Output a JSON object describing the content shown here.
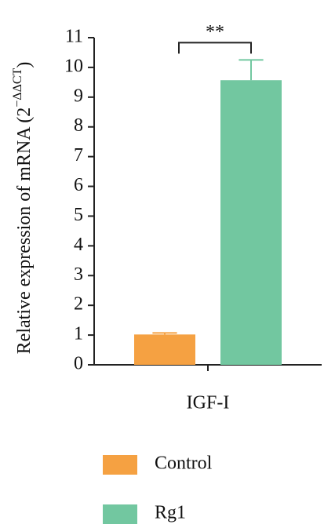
{
  "chart_data": {
    "type": "bar",
    "y_label": {
      "text": "Relative expression of mRNA (2",
      "superscript": "−ΔΔCT",
      "close": ")"
    },
    "categories": [
      "IGF-I"
    ],
    "series": [
      {
        "name": "Control",
        "color": "#f5a142",
        "values": [
          1.02
        ],
        "errors": [
          0.05
        ]
      },
      {
        "name": "Rg1",
        "color": "#72c7a0",
        "values": [
          9.57
        ],
        "errors": [
          0.68
        ]
      }
    ],
    "annotations": [
      {
        "text": "**"
      }
    ],
    "ylim": [
      0,
      11
    ],
    "yticks": [
      0,
      1,
      2,
      3,
      4,
      5,
      6,
      7,
      8,
      9,
      10,
      11
    ]
  }
}
